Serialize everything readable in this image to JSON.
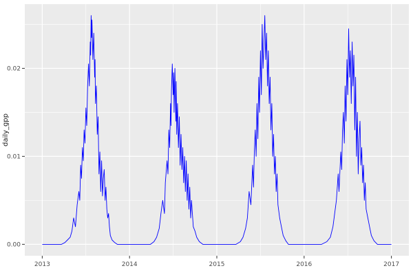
{
  "figure": {
    "background_color": "#FFFFFF",
    "panel_color": "#EBEBEB",
    "grid_color": "#FFFFFF",
    "tick_text_color": "#4D4D4D",
    "axis_title_color": "#1A1A1A"
  },
  "chart_data": {
    "type": "line",
    "title": "",
    "xlabel": "",
    "ylabel": "daily_gpp",
    "line_color": "#0000FF",
    "panel_bg": "#EBEBEB",
    "grid": true,
    "legend": false,
    "xlim": [
      2012.8,
      2017.2
    ],
    "ylim": [
      -0.0013,
      0.0273
    ],
    "x_ticks": [
      2013,
      2014,
      2015,
      2016,
      2017
    ],
    "x_tick_labels": [
      "2013",
      "2014",
      "2015",
      "2016",
      "2017"
    ],
    "x_minor": [
      2013.5,
      2014.5,
      2015.5,
      2016.5
    ],
    "y_ticks": [
      0,
      0.01,
      0.02
    ],
    "y_tick_labels": [
      "0.00",
      "0.01",
      "0.02"
    ],
    "y_minor": [
      0.005,
      0.015,
      0.025
    ],
    "series": [
      {
        "name": "daily_gpp",
        "points": [
          [
            2013.0,
            0
          ],
          [
            2013.08,
            0
          ],
          [
            2013.16,
            0
          ],
          [
            2013.22,
            0
          ],
          [
            2013.26,
            0.0002
          ],
          [
            2013.29,
            0.0005
          ],
          [
            2013.32,
            0.0008
          ],
          [
            2013.34,
            0.0015
          ],
          [
            2013.36,
            0.003
          ],
          [
            2013.38,
            0.002
          ],
          [
            2013.4,
            0.0045
          ],
          [
            2013.42,
            0.006
          ],
          [
            2013.43,
            0.005
          ],
          [
            2013.44,
            0.009
          ],
          [
            2013.45,
            0.0075
          ],
          [
            2013.46,
            0.011
          ],
          [
            2013.47,
            0.0095
          ],
          [
            2013.48,
            0.013
          ],
          [
            2013.49,
            0.0115
          ],
          [
            2013.5,
            0.0155
          ],
          [
            2013.51,
            0.0135
          ],
          [
            2013.52,
            0.018
          ],
          [
            2013.53,
            0.0205
          ],
          [
            2013.54,
            0.018
          ],
          [
            2013.55,
            0.023
          ],
          [
            2013.555,
            0.0215
          ],
          [
            2013.56,
            0.026
          ],
          [
            2013.565,
            0.0235
          ],
          [
            2013.57,
            0.0255
          ],
          [
            2013.58,
            0.021
          ],
          [
            2013.59,
            0.024
          ],
          [
            2013.6,
            0.019
          ],
          [
            2013.605,
            0.021
          ],
          [
            2013.61,
            0.016
          ],
          [
            2013.62,
            0.018
          ],
          [
            2013.63,
            0.0125
          ],
          [
            2013.64,
            0.0145
          ],
          [
            2013.65,
            0.008
          ],
          [
            2013.66,
            0.0105
          ],
          [
            2013.67,
            0.006
          ],
          [
            2013.68,
            0.0095
          ],
          [
            2013.69,
            0.0055
          ],
          [
            2013.7,
            0.0075
          ],
          [
            2013.71,
            0.0085
          ],
          [
            2013.72,
            0.005
          ],
          [
            2013.73,
            0.0065
          ],
          [
            2013.74,
            0.004
          ],
          [
            2013.75,
            0.003
          ],
          [
            2013.76,
            0.0035
          ],
          [
            2013.77,
            0.002
          ],
          [
            2013.78,
            0.001
          ],
          [
            2013.8,
            0.0005
          ],
          [
            2013.83,
            0.0002
          ],
          [
            2013.86,
            0
          ],
          [
            2013.95,
            0
          ],
          [
            2014.05,
            0
          ],
          [
            2014.15,
            0
          ],
          [
            2014.24,
            0
          ],
          [
            2014.28,
            0.0003
          ],
          [
            2014.31,
            0.0008
          ],
          [
            2014.34,
            0.0018
          ],
          [
            2014.36,
            0.0035
          ],
          [
            2014.38,
            0.005
          ],
          [
            2014.4,
            0.0035
          ],
          [
            2014.41,
            0.007
          ],
          [
            2014.43,
            0.0095
          ],
          [
            2014.44,
            0.008
          ],
          [
            2014.45,
            0.013
          ],
          [
            2014.46,
            0.011
          ],
          [
            2014.47,
            0.016
          ],
          [
            2014.475,
            0.0135
          ],
          [
            2014.48,
            0.0175
          ],
          [
            2014.49,
            0.0205
          ],
          [
            2014.5,
            0.017
          ],
          [
            2014.505,
            0.0195
          ],
          [
            2014.51,
            0.015
          ],
          [
            2014.52,
            0.02
          ],
          [
            2014.53,
            0.014
          ],
          [
            2014.535,
            0.0185
          ],
          [
            2014.54,
            0.0125
          ],
          [
            2014.55,
            0.016
          ],
          [
            2014.56,
            0.011
          ],
          [
            2014.57,
            0.0145
          ],
          [
            2014.58,
            0.009
          ],
          [
            2014.59,
            0.0125
          ],
          [
            2014.6,
            0.0085
          ],
          [
            2014.61,
            0.011
          ],
          [
            2014.62,
            0.007
          ],
          [
            2014.63,
            0.01
          ],
          [
            2014.64,
            0.006
          ],
          [
            2014.65,
            0.0095
          ],
          [
            2014.66,
            0.005
          ],
          [
            2014.67,
            0.008
          ],
          [
            2014.68,
            0.004
          ],
          [
            2014.69,
            0.0065
          ],
          [
            2014.7,
            0.003
          ],
          [
            2014.71,
            0.005
          ],
          [
            2014.72,
            0.0035
          ],
          [
            2014.73,
            0.002
          ],
          [
            2014.75,
            0.0015
          ],
          [
            2014.77,
            0.0008
          ],
          [
            2014.8,
            0.0003
          ],
          [
            2014.84,
            0
          ],
          [
            2014.93,
            0
          ],
          [
            2015.02,
            0
          ],
          [
            2015.12,
            0
          ],
          [
            2015.22,
            0
          ],
          [
            2015.27,
            0.0003
          ],
          [
            2015.3,
            0.0008
          ],
          [
            2015.33,
            0.0018
          ],
          [
            2015.35,
            0.003
          ],
          [
            2015.37,
            0.006
          ],
          [
            2015.39,
            0.0045
          ],
          [
            2015.41,
            0.009
          ],
          [
            2015.42,
            0.0065
          ],
          [
            2015.43,
            0.0105
          ],
          [
            2015.44,
            0.013
          ],
          [
            2015.45,
            0.01
          ],
          [
            2015.46,
            0.016
          ],
          [
            2015.47,
            0.012
          ],
          [
            2015.48,
            0.019
          ],
          [
            2015.49,
            0.015
          ],
          [
            2015.5,
            0.022
          ],
          [
            2015.51,
            0.017
          ],
          [
            2015.52,
            0.025
          ],
          [
            2015.53,
            0.02
          ],
          [
            2015.54,
            0.023
          ],
          [
            2015.55,
            0.026
          ],
          [
            2015.56,
            0.021
          ],
          [
            2015.57,
            0.024
          ],
          [
            2015.58,
            0.018
          ],
          [
            2015.59,
            0.022
          ],
          [
            2015.6,
            0.016
          ],
          [
            2015.61,
            0.019
          ],
          [
            2015.62,
            0.013
          ],
          [
            2015.63,
            0.016
          ],
          [
            2015.64,
            0.01
          ],
          [
            2015.65,
            0.0125
          ],
          [
            2015.66,
            0.008
          ],
          [
            2015.67,
            0.01
          ],
          [
            2015.68,
            0.006
          ],
          [
            2015.69,
            0.008
          ],
          [
            2015.7,
            0.0045
          ],
          [
            2015.72,
            0.003
          ],
          [
            2015.74,
            0.002
          ],
          [
            2015.76,
            0.001
          ],
          [
            2015.79,
            0.0004
          ],
          [
            2015.82,
            0
          ],
          [
            2015.91,
            0
          ],
          [
            2016.0,
            0
          ],
          [
            2016.1,
            0
          ],
          [
            2016.2,
            0
          ],
          [
            2016.26,
            0.0003
          ],
          [
            2016.3,
            0.0008
          ],
          [
            2016.33,
            0.002
          ],
          [
            2016.35,
            0.0035
          ],
          [
            2016.37,
            0.005
          ],
          [
            2016.39,
            0.008
          ],
          [
            2016.4,
            0.006
          ],
          [
            2016.42,
            0.0105
          ],
          [
            2016.43,
            0.0085
          ],
          [
            2016.44,
            0.013
          ],
          [
            2016.45,
            0.015
          ],
          [
            2016.46,
            0.0115
          ],
          [
            2016.47,
            0.018
          ],
          [
            2016.48,
            0.014
          ],
          [
            2016.49,
            0.021
          ],
          [
            2016.5,
            0.017
          ],
          [
            2016.51,
            0.0245
          ],
          [
            2016.52,
            0.019
          ],
          [
            2016.53,
            0.022
          ],
          [
            2016.54,
            0.016
          ],
          [
            2016.55,
            0.023
          ],
          [
            2016.56,
            0.018
          ],
          [
            2016.57,
            0.0215
          ],
          [
            2016.58,
            0.013
          ],
          [
            2016.59,
            0.019
          ],
          [
            2016.6,
            0.01
          ],
          [
            2016.61,
            0.015
          ],
          [
            2016.62,
            0.008
          ],
          [
            2016.63,
            0.012
          ],
          [
            2016.64,
            0.014
          ],
          [
            2016.65,
            0.009
          ],
          [
            2016.66,
            0.011
          ],
          [
            2016.67,
            0.007
          ],
          [
            2016.68,
            0.009
          ],
          [
            2016.69,
            0.005
          ],
          [
            2016.7,
            0.007
          ],
          [
            2016.71,
            0.004
          ],
          [
            2016.73,
            0.003
          ],
          [
            2016.75,
            0.002
          ],
          [
            2016.77,
            0.001
          ],
          [
            2016.8,
            0.0004
          ],
          [
            2016.84,
            0
          ],
          [
            2016.92,
            0
          ],
          [
            2017.0,
            0
          ]
        ]
      }
    ]
  }
}
